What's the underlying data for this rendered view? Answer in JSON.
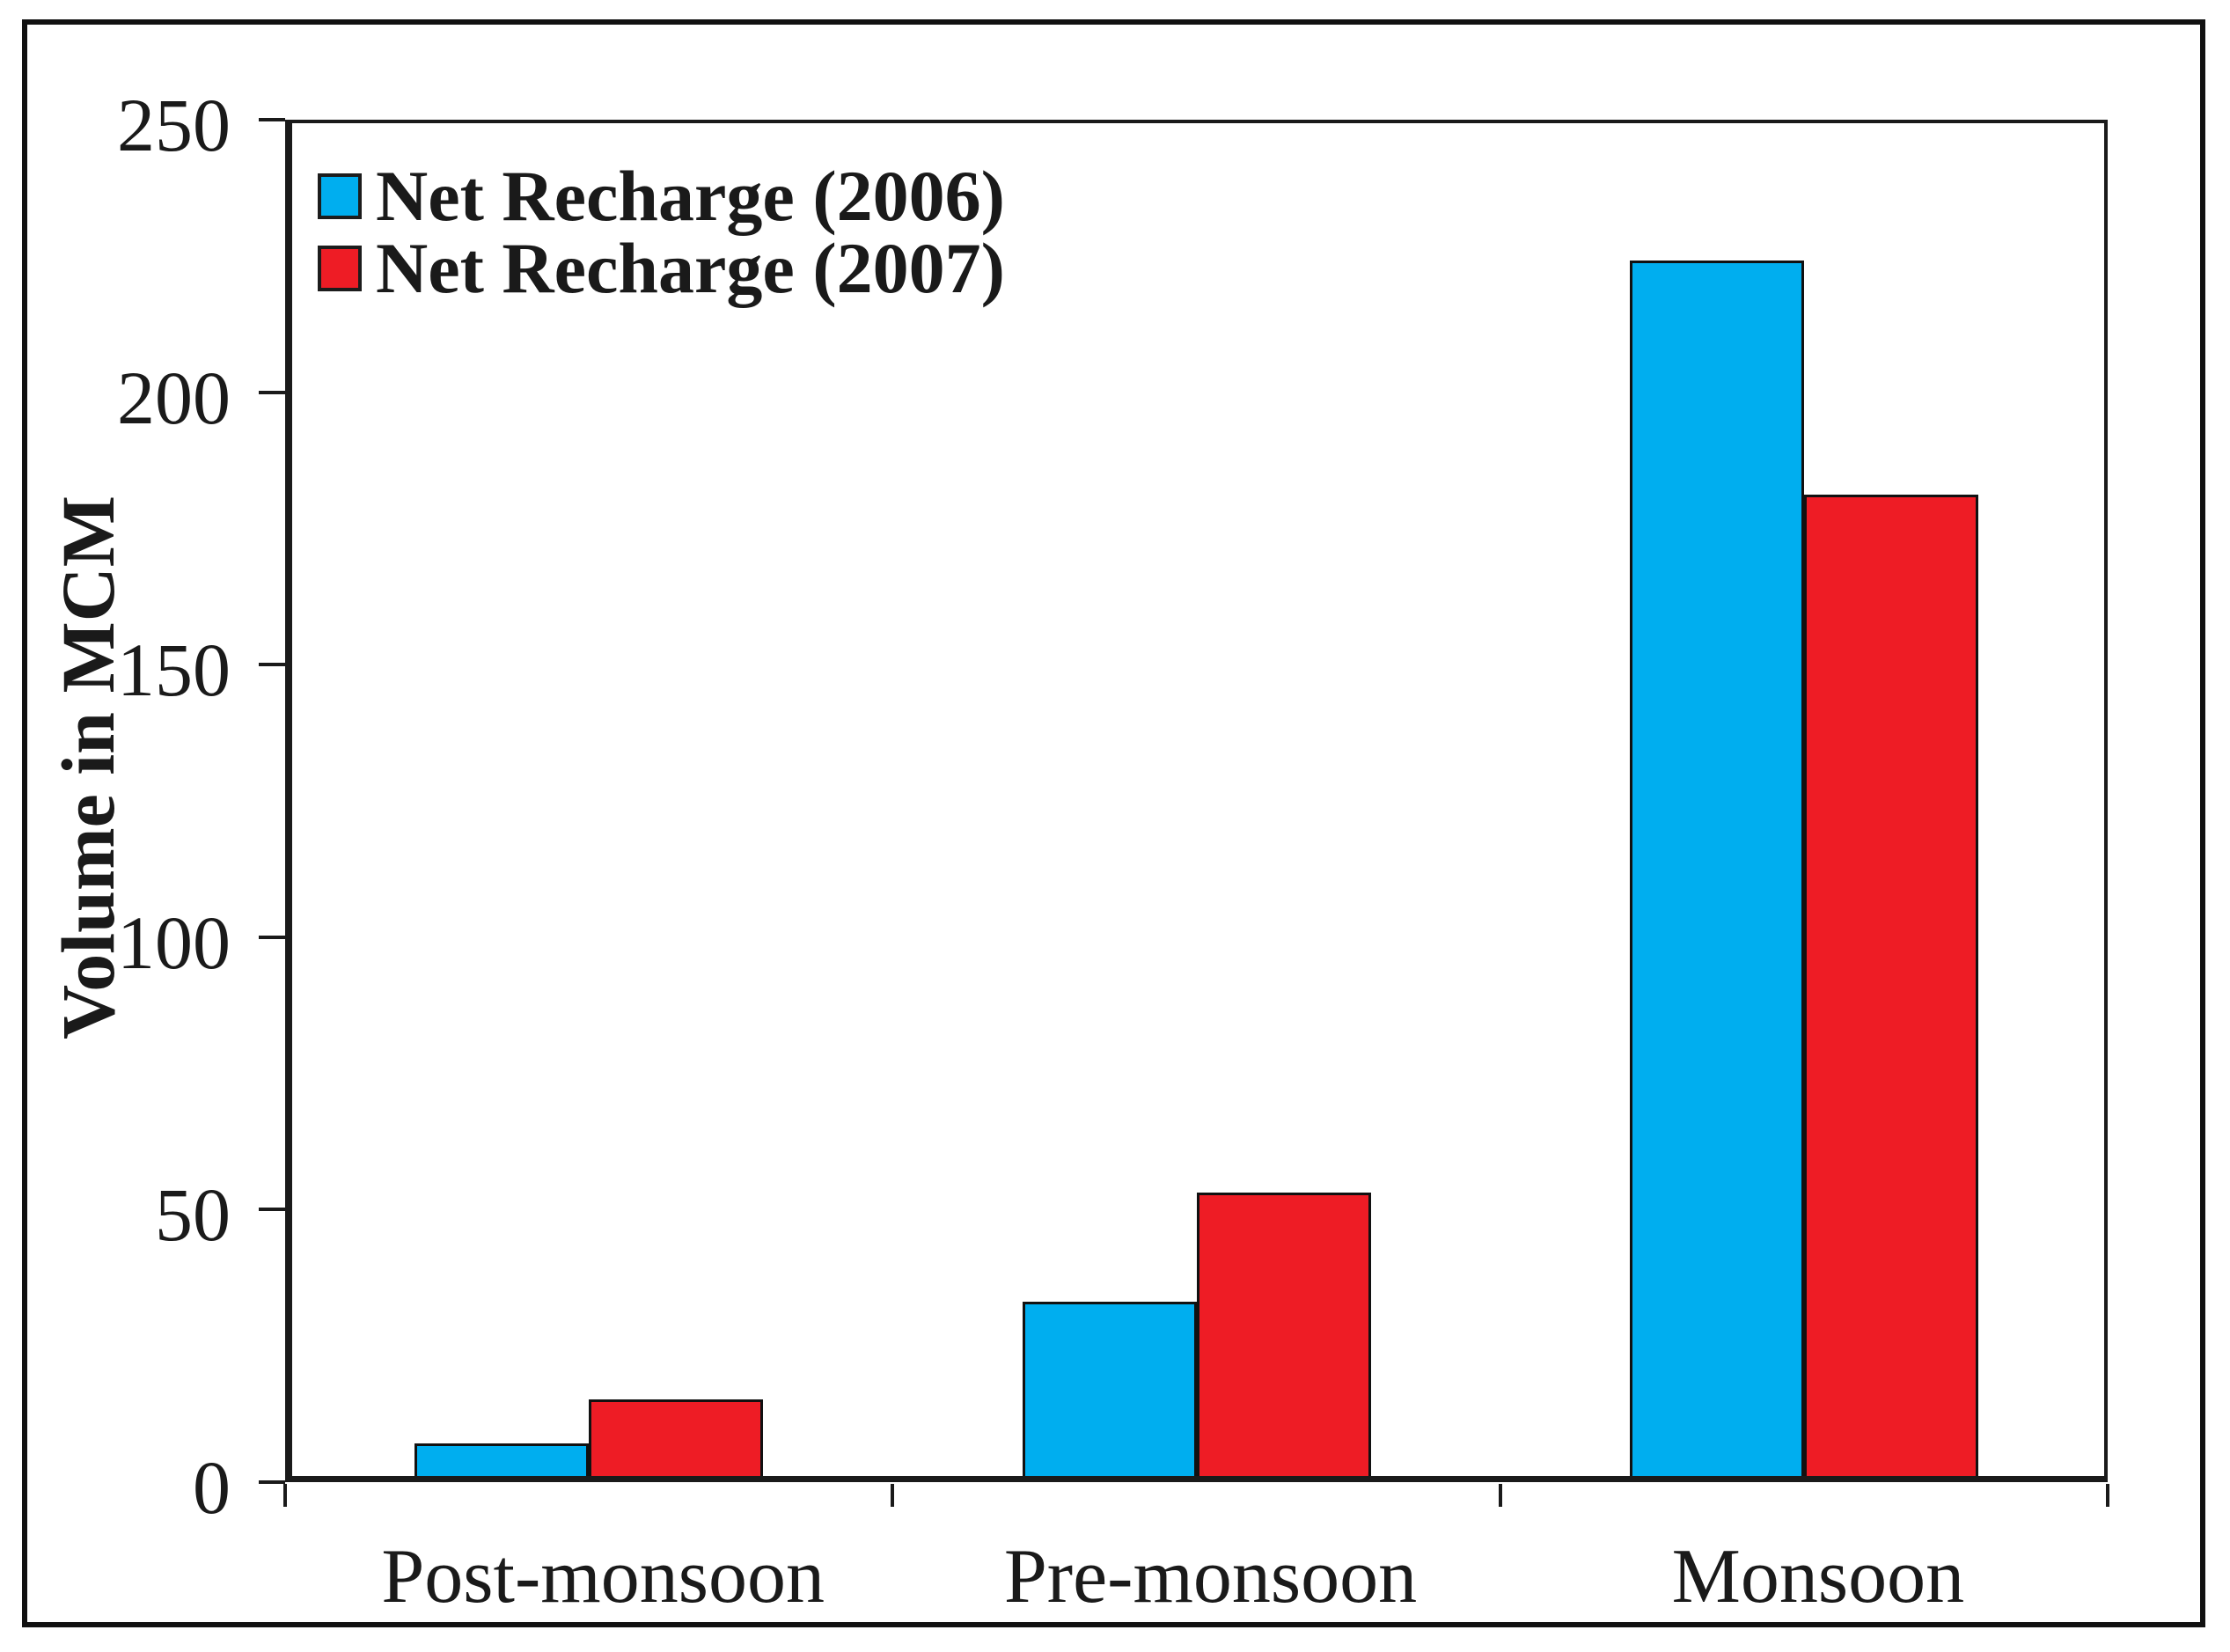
{
  "figure": {
    "background": "#ffffff",
    "border_color": "#111111"
  },
  "chart_data": {
    "type": "bar",
    "title": "",
    "categories": [
      "Post-monsoon",
      "Pre-monsoon",
      "Monsoon"
    ],
    "series": [
      {
        "name": "Net Recharge (2006)",
        "color": "#00AEEF",
        "values": [
          6,
          32,
          223
        ]
      },
      {
        "name": "Net Recharge (2007)",
        "color": "#EE1C25",
        "values": [
          14,
          52,
          180
        ]
      }
    ],
    "xlabel": "",
    "ylabel": "Volume in MCM",
    "ylim": [
      0,
      250
    ],
    "yticks": [
      0,
      50,
      100,
      150,
      200,
      250
    ],
    "grid": false,
    "legend_position": "top-left",
    "axis_color": "#1a1a1a",
    "bar_outline_color": "#111111",
    "text_color": "#1a1a1a"
  }
}
